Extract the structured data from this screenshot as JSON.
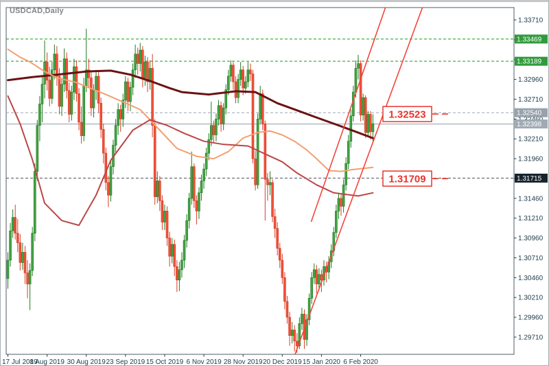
{
  "window": {
    "title": "USDCAD,Daily"
  },
  "colors": {
    "frame": "#4d5d66",
    "axis_text": "#1c3a4a",
    "bull_fill": "#44a244",
    "bull_stroke": "#1f7a1f",
    "bear_fill": "#ef5138",
    "bear_stroke": "#d83c26",
    "trendline": "#f4443c",
    "callout": "#e8342c",
    "title_gray": "#808488"
  },
  "chart_data": {
    "type": "candlestick",
    "symbol": "USDCAD",
    "timeframe": "Daily",
    "ylim": [
      1.29493,
      1.33866
    ],
    "y_ticks": [
      "1.33710",
      "1.33460",
      "1.33210",
      "1.32960",
      "1.32710",
      "1.32460",
      "1.32210",
      "1.31960",
      "1.31710",
      "1.31460",
      "1.31210",
      "1.30960",
      "1.30710",
      "1.30460",
      "1.30210",
      "1.29960",
      "1.29710"
    ],
    "x_ticks": [
      {
        "label": "17 Jul 2019",
        "bar": 0
      },
      {
        "label": "8 Aug 2019",
        "bar": 16
      },
      {
        "label": "30 Aug 2019",
        "bar": 32
      },
      {
        "label": "23 Sep 2019",
        "bar": 48
      },
      {
        "label": "15 Oct 2019",
        "bar": 64
      },
      {
        "label": "6 Nov 2019",
        "bar": 80
      },
      {
        "label": "28 Nov 2019",
        "bar": 96
      },
      {
        "label": "20 Dec 2019",
        "bar": 112
      },
      {
        "label": "15 Jan 2020",
        "bar": 128
      },
      {
        "label": "6 Feb 2020",
        "bar": 144
      }
    ],
    "levels": [
      {
        "label": "1.33469",
        "price": 1.33469,
        "style": "dashed",
        "line_color": "#0da00d",
        "badge_bg": "#319b3c",
        "badge_fg": "#ffffff"
      },
      {
        "label": "1.33189",
        "price": 1.33189,
        "style": "dashed",
        "line_color": "#0da00d",
        "badge_bg": "#319b3c",
        "badge_fg": "#ffffff"
      },
      {
        "label": "1.32540",
        "price": 1.3254,
        "style": "dashed",
        "line_color": "#9aa5b0",
        "badge_bg": "#98a2ac",
        "badge_fg": "#ffffff"
      },
      {
        "label": "1.32398",
        "price": 1.32398,
        "style": "solid",
        "line_color": "#a9b3bb",
        "badge_bg": "#a0aab4",
        "badge_fg": "#ffffff"
      },
      {
        "label": "1.31715",
        "price": 1.31715,
        "style": "dashed",
        "line_color": "#46525c",
        "badge_bg": "#17242e",
        "badge_fg": "#ffffff"
      }
    ],
    "callouts": [
      {
        "label": "1.32523",
        "price": 1.32523
      },
      {
        "label": "1.31709",
        "price": 1.31709
      }
    ],
    "trendlines": [
      {
        "name": "trendline-upper",
        "p1": {
          "bar": 123.8,
          "price": 1.31164
        },
        "p2": {
          "bar": 154.1,
          "price": 1.33866
        }
      },
      {
        "name": "trendline-lower",
        "p1": {
          "bar": 117.2,
          "price": 1.29493
        },
        "p2": {
          "bar": 169.2,
          "price": 1.33866
        }
      }
    ],
    "ma_lines": [
      {
        "name": "ma-dark-maroon",
        "color": "#6b1212",
        "width": 3,
        "points": [
          [
            0,
            1.3295
          ],
          [
            10,
            1.3299
          ],
          [
            20,
            1.3302
          ],
          [
            32,
            1.3306
          ],
          [
            42,
            1.3307
          ],
          [
            50,
            1.3302
          ],
          [
            58,
            1.3294
          ],
          [
            66,
            1.3285
          ],
          [
            71,
            1.328
          ],
          [
            82,
            1.3277
          ],
          [
            93,
            1.3281
          ],
          [
            101,
            1.328
          ],
          [
            110,
            1.3266
          ],
          [
            118,
            1.3257
          ],
          [
            126,
            1.3248
          ],
          [
            135,
            1.3238
          ],
          [
            142,
            1.323
          ],
          [
            149,
            1.3222
          ]
        ]
      },
      {
        "name": "ma-salmon",
        "color": "#f2a070",
        "width": 2,
        "points": [
          [
            0,
            1.3334
          ],
          [
            5,
            1.3324
          ],
          [
            9,
            1.3318
          ],
          [
            15,
            1.3306
          ],
          [
            20,
            1.3298
          ],
          [
            28,
            1.3292
          ],
          [
            40,
            1.3277
          ],
          [
            54,
            1.3258
          ],
          [
            62,
            1.3232
          ],
          [
            69,
            1.3209
          ],
          [
            77,
            1.3199
          ],
          [
            84,
            1.3196
          ],
          [
            90,
            1.3205
          ],
          [
            96,
            1.3222
          ],
          [
            102,
            1.3229
          ],
          [
            107,
            1.3231
          ],
          [
            112,
            1.3226
          ],
          [
            117,
            1.3218
          ],
          [
            122,
            1.3207
          ],
          [
            126,
            1.3196
          ],
          [
            131,
            1.3181
          ],
          [
            136,
            1.318
          ],
          [
            140,
            1.3182
          ],
          [
            149,
            1.3185
          ]
        ]
      },
      {
        "name": "ma-firebrick",
        "color": "#bc4545",
        "width": 2,
        "points": [
          [
            0,
            1.3275
          ],
          [
            5,
            1.324
          ],
          [
            10,
            1.3195
          ],
          [
            15,
            1.314
          ],
          [
            22,
            1.3118
          ],
          [
            29,
            1.3112
          ],
          [
            36,
            1.315
          ],
          [
            42,
            1.3194
          ],
          [
            51,
            1.3232
          ],
          [
            58,
            1.3245
          ],
          [
            65,
            1.3238
          ],
          [
            72,
            1.3228
          ],
          [
            80,
            1.3218
          ],
          [
            88,
            1.3214
          ],
          [
            98,
            1.3212
          ],
          [
            105,
            1.3202
          ],
          [
            112,
            1.3192
          ],
          [
            118,
            1.3178
          ],
          [
            126,
            1.3163
          ],
          [
            133,
            1.3153
          ],
          [
            143,
            1.3149
          ],
          [
            149,
            1.3153
          ]
        ]
      }
    ],
    "candles": [
      [
        1.3045,
        1.3078,
        1.3032,
        1.3068
      ],
      [
        1.3068,
        1.3115,
        1.306,
        1.3105
      ],
      [
        1.3105,
        1.3132,
        1.3096,
        1.3122
      ],
      [
        1.3122,
        1.3138,
        1.3094,
        1.3102
      ],
      [
        1.3102,
        1.312,
        1.3078,
        1.309
      ],
      [
        1.309,
        1.3101,
        1.3055,
        1.3065
      ],
      [
        1.3065,
        1.309,
        1.3056,
        1.3078
      ],
      [
        1.3078,
        1.3086,
        1.3038,
        1.3052
      ],
      [
        1.3052,
        1.3068,
        1.302,
        1.3038
      ],
      [
        1.3038,
        1.3064,
        1.3005,
        1.3055
      ],
      [
        1.3055,
        1.311,
        1.3048,
        1.3102
      ],
      [
        1.3102,
        1.319,
        1.3092,
        1.318
      ],
      [
        1.318,
        1.3245,
        1.3168,
        1.3238
      ],
      [
        1.3238,
        1.3275,
        1.3218,
        1.3265
      ],
      [
        1.3265,
        1.33,
        1.3242,
        1.329
      ],
      [
        1.329,
        1.3345,
        1.3272,
        1.3318
      ],
      [
        1.3318,
        1.333,
        1.3282,
        1.3295
      ],
      [
        1.3295,
        1.3312,
        1.3262,
        1.3272
      ],
      [
        1.3272,
        1.3318,
        1.3265,
        1.3308
      ],
      [
        1.3308,
        1.334,
        1.3296,
        1.3328
      ],
      [
        1.3328,
        1.3338,
        1.3288,
        1.33
      ],
      [
        1.33,
        1.331,
        1.3252,
        1.3262
      ],
      [
        1.3262,
        1.3298,
        1.325,
        1.329
      ],
      [
        1.329,
        1.3335,
        1.328,
        1.3322
      ],
      [
        1.3322,
        1.333,
        1.3272,
        1.3282
      ],
      [
        1.3282,
        1.3292,
        1.3242,
        1.3252
      ],
      [
        1.3252,
        1.3288,
        1.3244,
        1.328
      ],
      [
        1.328,
        1.3322,
        1.327,
        1.3312
      ],
      [
        1.3312,
        1.332,
        1.3268,
        1.3278
      ],
      [
        1.3278,
        1.3285,
        1.3232,
        1.3242
      ],
      [
        1.3242,
        1.3262,
        1.3215,
        1.3225
      ],
      [
        1.3225,
        1.3298,
        1.3218,
        1.3288
      ],
      [
        1.3288,
        1.336,
        1.328,
        1.3308
      ],
      [
        1.3308,
        1.3322,
        1.3286,
        1.3298
      ],
      [
        1.3298,
        1.3306,
        1.325,
        1.326
      ],
      [
        1.326,
        1.329,
        1.3248,
        1.3283
      ],
      [
        1.3283,
        1.3308,
        1.327,
        1.33
      ],
      [
        1.33,
        1.3305,
        1.3254,
        1.3266
      ],
      [
        1.3266,
        1.3273,
        1.3222,
        1.3233
      ],
      [
        1.3233,
        1.324,
        1.319,
        1.3203
      ],
      [
        1.3203,
        1.321,
        1.3156,
        1.3166
      ],
      [
        1.3166,
        1.3174,
        1.3135,
        1.315
      ],
      [
        1.315,
        1.3193,
        1.3142,
        1.3186
      ],
      [
        1.3186,
        1.322,
        1.3176,
        1.3213
      ],
      [
        1.3213,
        1.3246,
        1.3203,
        1.3238
      ],
      [
        1.3238,
        1.3266,
        1.3226,
        1.3258
      ],
      [
        1.3258,
        1.3264,
        1.323,
        1.3246
      ],
      [
        1.3246,
        1.3278,
        1.3236,
        1.327
      ],
      [
        1.327,
        1.33,
        1.326,
        1.3293
      ],
      [
        1.3293,
        1.3298,
        1.3256,
        1.3268
      ],
      [
        1.3268,
        1.3293,
        1.3256,
        1.3286
      ],
      [
        1.3286,
        1.3316,
        1.3276,
        1.3308
      ],
      [
        1.3308,
        1.334,
        1.3298,
        1.3328
      ],
      [
        1.3328,
        1.3336,
        1.3302,
        1.3316
      ],
      [
        1.3316,
        1.3342,
        1.3306,
        1.3333
      ],
      [
        1.3333,
        1.3338,
        1.3286,
        1.3298
      ],
      [
        1.3298,
        1.3326,
        1.3288,
        1.3318
      ],
      [
        1.3318,
        1.3324,
        1.328,
        1.3293
      ],
      [
        1.3293,
        1.332,
        1.3283,
        1.331
      ],
      [
        1.331,
        1.3328,
        1.3223,
        1.3238
      ],
      [
        1.3238,
        1.3246,
        1.3138,
        1.3148
      ],
      [
        1.3148,
        1.318,
        1.314,
        1.3168
      ],
      [
        1.3168,
        1.3174,
        1.313,
        1.3143
      ],
      [
        1.3143,
        1.315,
        1.3106,
        1.3116
      ],
      [
        1.3116,
        1.3138,
        1.3106,
        1.313
      ],
      [
        1.313,
        1.3136,
        1.3086,
        1.3096
      ],
      [
        1.3096,
        1.3104,
        1.306,
        1.3073
      ],
      [
        1.3073,
        1.3096,
        1.3064,
        1.3088
      ],
      [
        1.3088,
        1.3094,
        1.3048,
        1.306
      ],
      [
        1.306,
        1.3068,
        1.3028,
        1.3043
      ],
      [
        1.3043,
        1.3066,
        1.3029,
        1.3056
      ],
      [
        1.3056,
        1.3078,
        1.3046,
        1.3068
      ],
      [
        1.3068,
        1.31,
        1.3058,
        1.3093
      ],
      [
        1.3093,
        1.3126,
        1.3084,
        1.3118
      ],
      [
        1.3118,
        1.3153,
        1.3108,
        1.3146
      ],
      [
        1.3146,
        1.3205,
        1.3138,
        1.3186
      ],
      [
        1.3186,
        1.319,
        1.3134,
        1.3143
      ],
      [
        1.3143,
        1.315,
        1.3113,
        1.313
      ],
      [
        1.313,
        1.316,
        1.312,
        1.3153
      ],
      [
        1.3153,
        1.3176,
        1.3143,
        1.3168
      ],
      [
        1.3168,
        1.319,
        1.3158,
        1.3183
      ],
      [
        1.3183,
        1.321,
        1.3174,
        1.3203
      ],
      [
        1.3203,
        1.3228,
        1.3194,
        1.322
      ],
      [
        1.322,
        1.3268,
        1.3212,
        1.3238
      ],
      [
        1.3238,
        1.3244,
        1.3216,
        1.3226
      ],
      [
        1.3226,
        1.3253,
        1.3218,
        1.3246
      ],
      [
        1.3246,
        1.327,
        1.3238,
        1.3263
      ],
      [
        1.3263,
        1.3268,
        1.323,
        1.324
      ],
      [
        1.324,
        1.3266,
        1.3232,
        1.326
      ],
      [
        1.326,
        1.329,
        1.3252,
        1.3283
      ],
      [
        1.3283,
        1.3308,
        1.3276,
        1.33
      ],
      [
        1.33,
        1.332,
        1.3293,
        1.3314
      ],
      [
        1.3314,
        1.3318,
        1.3283,
        1.3293
      ],
      [
        1.3293,
        1.33,
        1.3266,
        1.3273
      ],
      [
        1.3273,
        1.3303,
        1.3266,
        1.3296
      ],
      [
        1.3296,
        1.3318,
        1.3288,
        1.3308
      ],
      [
        1.3308,
        1.3313,
        1.3276,
        1.3285
      ],
      [
        1.3285,
        1.33,
        1.3278,
        1.3293
      ],
      [
        1.3293,
        1.3318,
        1.3286,
        1.3308
      ],
      [
        1.3308,
        1.3316,
        1.3294,
        1.3303
      ],
      [
        1.3303,
        1.3308,
        1.319,
        1.3196
      ],
      [
        1.3196,
        1.3206,
        1.3156,
        1.3163
      ],
      [
        1.3163,
        1.3253,
        1.3158,
        1.3246
      ],
      [
        1.3246,
        1.3288,
        1.324,
        1.3278
      ],
      [
        1.3278,
        1.3283,
        1.3232,
        1.324
      ],
      [
        1.324,
        1.3244,
        1.3118,
        1.317
      ],
      [
        1.317,
        1.3178,
        1.3143,
        1.3163
      ],
      [
        1.3163,
        1.318,
        1.315,
        1.3166
      ],
      [
        1.3166,
        1.317,
        1.3116,
        1.3123
      ],
      [
        1.3123,
        1.3133,
        1.3096,
        1.3108
      ],
      [
        1.3108,
        1.3116,
        1.3074,
        1.3083
      ],
      [
        1.3083,
        1.309,
        1.3058,
        1.3068
      ],
      [
        1.3068,
        1.3076,
        1.3038,
        1.3046
      ],
      [
        1.3046,
        1.3053,
        1.3006,
        1.3016
      ],
      [
        1.3016,
        1.3023,
        1.2988,
        1.2996
      ],
      [
        1.2996,
        1.3003,
        1.296,
        1.2973
      ],
      [
        1.2973,
        1.299,
        1.2963,
        1.298
      ],
      [
        1.298,
        1.2986,
        1.2953,
        1.2966
      ],
      [
        1.2966,
        1.2976,
        1.2951,
        1.296
      ],
      [
        1.296,
        1.2996,
        1.2956,
        1.2988
      ],
      [
        1.2988,
        1.3008,
        1.298,
        1.3
      ],
      [
        1.3,
        1.3006,
        1.2956,
        1.2968
      ],
      [
        1.2968,
        1.3,
        1.296,
        1.2993
      ],
      [
        1.2993,
        1.3026,
        1.2986,
        1.302
      ],
      [
        1.302,
        1.3053,
        1.3013,
        1.3046
      ],
      [
        1.3046,
        1.3064,
        1.3038,
        1.3056
      ],
      [
        1.3056,
        1.3062,
        1.3026,
        1.3038
      ],
      [
        1.3038,
        1.3058,
        1.303,
        1.305
      ],
      [
        1.305,
        1.3056,
        1.3028,
        1.3043
      ],
      [
        1.3043,
        1.3068,
        1.3036,
        1.306
      ],
      [
        1.306,
        1.3066,
        1.304,
        1.3053
      ],
      [
        1.3053,
        1.3073,
        1.3044,
        1.3066
      ],
      [
        1.3066,
        1.3088,
        1.3058,
        1.308
      ],
      [
        1.308,
        1.311,
        1.3073,
        1.3103
      ],
      [
        1.3103,
        1.3138,
        1.3096,
        1.313
      ],
      [
        1.313,
        1.3153,
        1.312,
        1.3146
      ],
      [
        1.3146,
        1.3152,
        1.3124,
        1.3136
      ],
      [
        1.3136,
        1.317,
        1.3128,
        1.3163
      ],
      [
        1.3163,
        1.3198,
        1.3156,
        1.319
      ],
      [
        1.319,
        1.3226,
        1.3183,
        1.3218
      ],
      [
        1.3218,
        1.3258,
        1.321,
        1.325
      ],
      [
        1.325,
        1.3288,
        1.3243,
        1.328
      ],
      [
        1.328,
        1.332,
        1.3273,
        1.331
      ],
      [
        1.331,
        1.3327,
        1.3296,
        1.3316
      ],
      [
        1.3316,
        1.332,
        1.3243,
        1.3251
      ],
      [
        1.3251,
        1.3278,
        1.3244,
        1.3273
      ],
      [
        1.3273,
        1.3276,
        1.3222,
        1.3229
      ],
      [
        1.3229,
        1.3256,
        1.3224,
        1.3252
      ],
      [
        1.3252,
        1.3256,
        1.322,
        1.323
      ],
      [
        1.323,
        1.3252,
        1.3218,
        1.324
      ]
    ]
  }
}
